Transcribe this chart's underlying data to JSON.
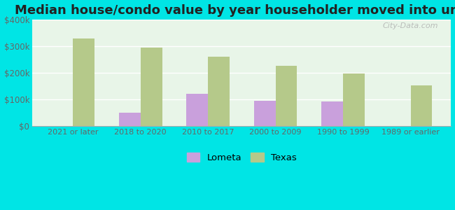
{
  "title": "Median house/condo value by year householder moved into unit",
  "categories": [
    "2021 or later",
    "2018 to 2020",
    "2010 to 2017",
    "2000 to 2009",
    "1990 to 1999",
    "1989 or earlier"
  ],
  "lometa_values": [
    null,
    50000,
    120000,
    95000,
    92000,
    null
  ],
  "texas_values": [
    330000,
    295000,
    260000,
    225000,
    198000,
    152000
  ],
  "lometa_color": "#c9a0dc",
  "texas_color": "#b5c98a",
  "background_top": "#f0f8f0",
  "background_bottom": "#d4edda",
  "outer_background": "#00e5e5",
  "ylim": [
    0,
    400000
  ],
  "yticks": [
    0,
    100000,
    200000,
    300000,
    400000
  ],
  "ytick_labels": [
    "$0",
    "$100k",
    "$200k",
    "$300k",
    "$400k"
  ],
  "bar_width": 0.32,
  "title_fontsize": 13,
  "watermark": "City-Data.com"
}
